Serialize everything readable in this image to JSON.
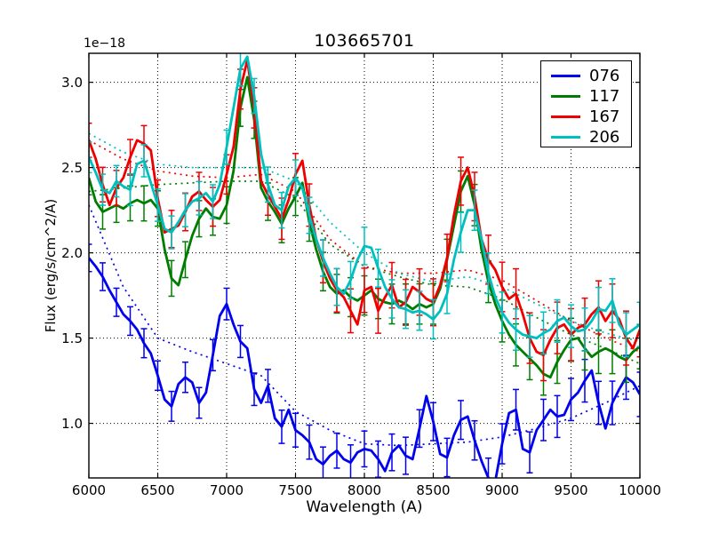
{
  "figure": {
    "title": "103665701",
    "xlabel": "Wavelength (A)",
    "ylabel": "Flux (erg/s/cm^2/A)",
    "offset_text": "1e−18",
    "background": "#ffffff",
    "frame_color": "#000000"
  },
  "chart_data": {
    "type": "line",
    "title": "103665701",
    "xlabel": "Wavelength (A)",
    "ylabel": "Flux (erg/s/cm^2/A)",
    "y_scale_factor": "1e-18",
    "xlim": [
      6000,
      10000
    ],
    "ylim": [
      0.68,
      3.17
    ],
    "xticks": [
      6000,
      6500,
      7000,
      7500,
      8000,
      8500,
      9000,
      9500,
      10000
    ],
    "yticks": [
      1.0,
      1.5,
      2.0,
      2.5,
      3.0
    ],
    "grid": true,
    "grid_style": "dotted",
    "legend_position": "upper right",
    "x_start": 6000,
    "x_step": 50,
    "series": [
      {
        "name": "076",
        "color": "#0000ee",
        "style": "solid_with_errorbars",
        "err_range": [
          0.08,
          0.13
        ],
        "values": [
          1.97,
          1.92,
          1.86,
          1.78,
          1.71,
          1.64,
          1.6,
          1.55,
          1.47,
          1.41,
          1.28,
          1.14,
          1.1,
          1.23,
          1.27,
          1.24,
          1.12,
          1.18,
          1.4,
          1.63,
          1.7,
          1.58,
          1.48,
          1.44,
          1.2,
          1.12,
          1.22,
          1.03,
          0.98,
          1.08,
          0.96,
          0.93,
          0.89,
          0.79,
          0.76,
          0.81,
          0.84,
          0.79,
          0.77,
          0.83,
          0.85,
          0.84,
          0.79,
          0.72,
          0.83,
          0.87,
          0.81,
          0.79,
          0.97,
          1.16,
          1.01,
          0.82,
          0.8,
          0.93,
          1.02,
          1.04,
          0.9,
          0.78,
          0.68,
          0.66,
          0.88,
          1.06,
          1.08,
          0.85,
          0.83,
          0.96,
          1.02,
          1.08,
          1.04,
          1.05,
          1.14,
          1.18,
          1.25,
          1.31,
          1.12,
          0.97,
          1.12,
          1.2,
          1.27,
          1.24,
          1.17
        ]
      },
      {
        "name": "117",
        "color": "#007d00",
        "style": "solid_with_errorbars",
        "err_range": [
          0.1,
          0.13
        ],
        "values": [
          2.44,
          2.3,
          2.24,
          2.26,
          2.28,
          2.26,
          2.29,
          2.31,
          2.29,
          2.31,
          2.26,
          2.02,
          1.85,
          1.81,
          1.96,
          2.1,
          2.2,
          2.26,
          2.21,
          2.2,
          2.28,
          2.48,
          2.85,
          3.03,
          2.78,
          2.38,
          2.3,
          2.24,
          2.17,
          2.26,
          2.33,
          2.41,
          2.18,
          2.02,
          1.89,
          1.8,
          1.76,
          1.78,
          1.74,
          1.72,
          1.75,
          1.78,
          1.73,
          1.71,
          1.7,
          1.72,
          1.7,
          1.67,
          1.7,
          1.68,
          1.7,
          1.79,
          1.96,
          2.16,
          2.36,
          2.45,
          2.28,
          2.02,
          1.83,
          1.7,
          1.6,
          1.52,
          1.46,
          1.42,
          1.38,
          1.34,
          1.29,
          1.27,
          1.36,
          1.43,
          1.49,
          1.5,
          1.44,
          1.39,
          1.42,
          1.44,
          1.42,
          1.39,
          1.37,
          1.42,
          1.45
        ]
      },
      {
        "name": "167",
        "color": "#ee0000",
        "style": "solid_with_errorbars",
        "err_range": [
          0.1,
          0.16
        ],
        "values": [
          2.66,
          2.55,
          2.4,
          2.28,
          2.38,
          2.44,
          2.56,
          2.66,
          2.64,
          2.6,
          2.32,
          2.12,
          2.14,
          2.16,
          2.24,
          2.33,
          2.36,
          2.31,
          2.27,
          2.31,
          2.46,
          2.62,
          2.96,
          3.13,
          2.85,
          2.42,
          2.34,
          2.27,
          2.2,
          2.31,
          2.46,
          2.54,
          2.28,
          2.08,
          1.95,
          1.85,
          1.78,
          1.74,
          1.66,
          1.58,
          1.78,
          1.8,
          1.66,
          1.74,
          1.81,
          1.68,
          1.71,
          1.8,
          1.77,
          1.73,
          1.71,
          1.81,
          1.97,
          2.22,
          2.42,
          2.5,
          2.33,
          2.08,
          1.96,
          1.9,
          1.8,
          1.73,
          1.76,
          1.64,
          1.5,
          1.42,
          1.4,
          1.49,
          1.56,
          1.58,
          1.52,
          1.56,
          1.58,
          1.64,
          1.68,
          1.6,
          1.66,
          1.61,
          1.5,
          1.44,
          1.55
        ]
      },
      {
        "name": "206",
        "color": "#00bfbf",
        "style": "solid_with_errorbars",
        "err_range": [
          0.09,
          0.13
        ],
        "values": [
          2.56,
          2.47,
          2.37,
          2.35,
          2.42,
          2.39,
          2.37,
          2.52,
          2.54,
          2.41,
          2.28,
          2.14,
          2.12,
          2.18,
          2.25,
          2.3,
          2.32,
          2.35,
          2.3,
          2.4,
          2.62,
          2.85,
          3.08,
          3.15,
          2.92,
          2.58,
          2.4,
          2.28,
          2.25,
          2.39,
          2.44,
          2.38,
          2.22,
          2.08,
          1.97,
          1.88,
          1.8,
          1.76,
          1.84,
          1.96,
          2.04,
          2.03,
          1.91,
          1.8,
          1.73,
          1.68,
          1.67,
          1.65,
          1.66,
          1.64,
          1.61,
          1.66,
          1.76,
          1.96,
          2.12,
          2.25,
          2.25,
          2.08,
          1.88,
          1.74,
          1.65,
          1.59,
          1.55,
          1.52,
          1.51,
          1.5,
          1.53,
          1.55,
          1.6,
          1.62,
          1.57,
          1.54,
          1.55,
          1.6,
          1.67,
          1.66,
          1.72,
          1.58,
          1.52,
          1.55,
          1.58
        ]
      }
    ],
    "model_series": [
      {
        "name": "076-model",
        "color": "#0000ee",
        "style": "dotted",
        "x_start": 6000,
        "x_step": 250,
        "values": [
          2.28,
          1.8,
          1.5,
          1.42,
          1.35,
          1.28,
          1.07,
          0.96,
          0.88,
          0.87,
          0.88,
          0.89,
          0.92,
          0.97,
          1.03,
          1.12,
          1.22
        ]
      },
      {
        "name": "117-model",
        "color": "#007d00",
        "style": "dotted",
        "x_start": 6000,
        "x_step": 250,
        "values": [
          2.36,
          2.38,
          2.4,
          2.41,
          2.42,
          2.42,
          2.32,
          2.05,
          1.92,
          1.86,
          1.81,
          1.8,
          1.73,
          1.62,
          1.52,
          1.44,
          1.35
        ]
      },
      {
        "name": "167-model",
        "color": "#ee0000",
        "style": "dotted",
        "x_start": 6000,
        "x_step": 250,
        "values": [
          2.66,
          2.55,
          2.48,
          2.45,
          2.44,
          2.46,
          2.36,
          2.08,
          1.92,
          1.88,
          1.88,
          1.9,
          1.84,
          1.72,
          1.6,
          1.5,
          1.42
        ]
      },
      {
        "name": "206-model",
        "color": "#00bfbf",
        "style": "dotted",
        "x_start": 6000,
        "x_step": 250,
        "values": [
          2.7,
          2.59,
          2.52,
          2.5,
          2.5,
          2.5,
          2.42,
          2.18,
          2.0,
          1.88,
          1.83,
          1.86,
          1.8,
          1.7,
          1.6,
          1.53,
          1.48
        ]
      }
    ]
  }
}
